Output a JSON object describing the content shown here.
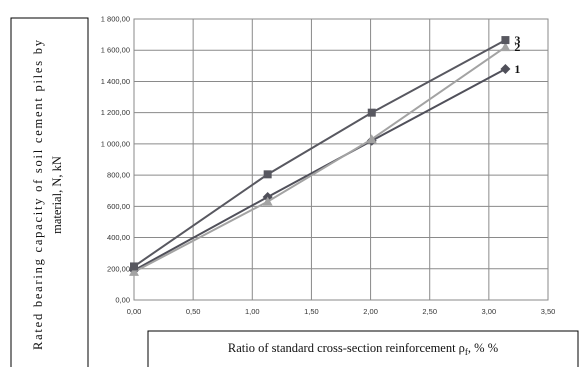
{
  "chart_data": {
    "type": "line",
    "ylabel_lines": [
      "Rated bearing capacity of soil cement piles by",
      "material, N, kN"
    ],
    "xlabel": "Ratio of standard cross-section reinforcement ρ",
    "xlabel_sub": "f",
    "xlabel_suffix": ", % %",
    "xlim": [
      0,
      3.5
    ],
    "ylim": [
      0,
      1800
    ],
    "x_ticks": [
      "0,00",
      "0,50",
      "1,00",
      "1,50",
      "2,00",
      "2,50",
      "3,00",
      "3,50"
    ],
    "y_ticks": [
      "0,00",
      "200,00",
      "400,00",
      "600,00",
      "800,00",
      "1 000,00",
      "1 200,00",
      "1 400,00",
      "1 600,00",
      "1 800,00"
    ],
    "grid": true,
    "series": [
      {
        "name": "1",
        "marker": "diamond",
        "color": "#50505a",
        "x": [
          0,
          1.13,
          2.01,
          3.14
        ],
        "values": [
          190,
          660,
          1020,
          1480
        ]
      },
      {
        "name": "2",
        "marker": "triangle",
        "color": "#a3a3a3",
        "x": [
          0,
          1.13,
          2.01,
          3.14
        ],
        "values": [
          180,
          630,
          1030,
          1620
        ]
      },
      {
        "name": "3",
        "marker": "square",
        "color": "#585860",
        "x": [
          0,
          1.13,
          2.01,
          3.14
        ],
        "values": [
          215,
          805,
          1200,
          1665
        ]
      }
    ]
  }
}
